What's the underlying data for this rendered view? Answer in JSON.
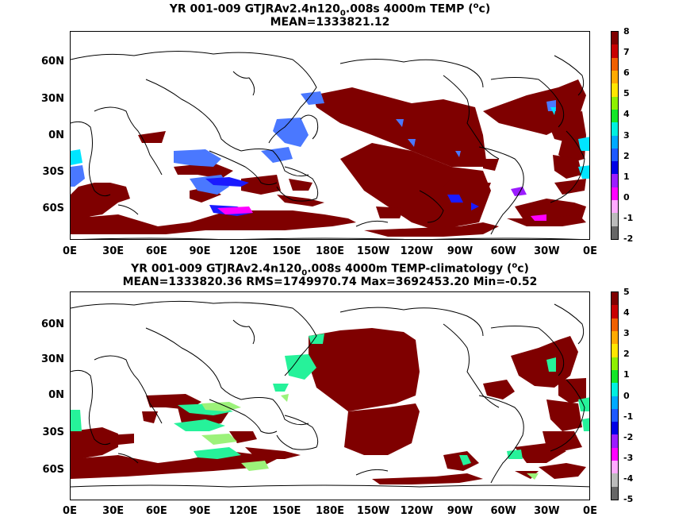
{
  "top": {
    "title_pre": "YR 001-009 GTJRAv2.4n120",
    "title_sub": "0",
    "title_mid": ".008s 4000m TEMP (",
    "title_sup": "o",
    "title_end": "c)",
    "subtitle": "MEAN=1333821.12",
    "colorbar_labels": [
      "8",
      "7",
      "6",
      "5",
      "4",
      "3",
      "2",
      "1",
      "0",
      "-1",
      "-2"
    ]
  },
  "bottom": {
    "title_pre": "YR 001-009 GTJRAv2.4n120",
    "title_sub": "0",
    "title_mid": ".008s 4000m TEMP-climatology (",
    "title_sup": "o",
    "title_end": "c)",
    "subtitle": "MEAN=1333820.36   RMS=1749970.74   Max=3692453.20   Min=-0.52",
    "colorbar_labels": [
      "5",
      "4",
      "3",
      "2",
      "1",
      "0",
      "-1",
      "-2",
      "-3",
      "-4",
      "-5"
    ]
  },
  "axes": {
    "x_ticks": [
      "0E",
      "30E",
      "60E",
      "90E",
      "120E",
      "150E",
      "180E",
      "150W",
      "120W",
      "90W",
      "60W",
      "30W",
      "0E"
    ],
    "y_ticks": [
      "60N",
      "30N",
      "0N",
      "30S",
      "60S"
    ]
  },
  "colors": {
    "maroon": "#7f0000",
    "blue_mid": "#4a78ff",
    "blue_dark": "#1a1aff",
    "cyan": "#00e5ff",
    "seagreen": "#26f29a",
    "lightgreen": "#9cf27a",
    "magenta": "#ff00ff",
    "purple": "#9b1cff",
    "colorbar_top": [
      "#7f0000",
      "#c80000",
      "#f06000",
      "#ffaa00",
      "#ffe600",
      "#8ef000",
      "#14e628",
      "#00f0e0",
      "#00aaff",
      "#1e5aff",
      "#0000e6",
      "#9b1cff",
      "#ff00ff",
      "#ffaaff",
      "#bbbbbb",
      "#666666"
    ]
  }
}
